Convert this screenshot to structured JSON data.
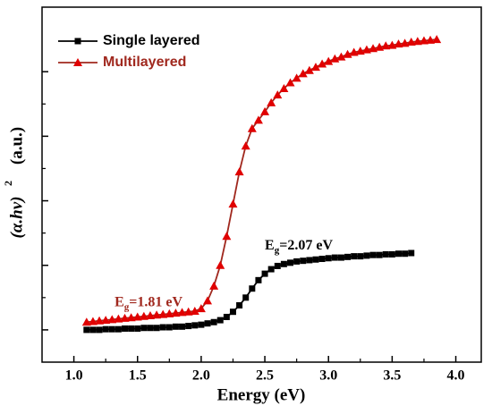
{
  "chart_data": {
    "type": "line",
    "xlabel": "Energy (eV)",
    "ylabel": "(α.hν)",
    "ylabel_sup": "2",
    "ylabel_unit": "(a.u.)",
    "xlim": [
      0.75,
      4.2
    ],
    "ylim": [
      -0.5,
      5
    ],
    "xticks": [
      {
        "value": 1,
        "label": "1.0"
      },
      {
        "value": 1.5,
        "label": "1.5"
      },
      {
        "value": 2,
        "label": "2.0"
      },
      {
        "value": 2.5,
        "label": "2.5"
      },
      {
        "value": 3,
        "label": "3.0"
      },
      {
        "value": 3.5,
        "label": "3.5"
      },
      {
        "value": 4,
        "label": "4.0"
      }
    ],
    "yticks": [
      0,
      1,
      2,
      3,
      4
    ],
    "legend": "upper left",
    "series": [
      {
        "name": "Single layered",
        "color": "#000000",
        "marker_color": "#000000",
        "marker": "square",
        "x": [
          1.1,
          1.15,
          1.2,
          1.25,
          1.3,
          1.35,
          1.4,
          1.45,
          1.5,
          1.55,
          1.6,
          1.65,
          1.7,
          1.75,
          1.8,
          1.85,
          1.9,
          1.95,
          2.0,
          2.05,
          2.1,
          2.15,
          2.2,
          2.25,
          2.3,
          2.35,
          2.4,
          2.45,
          2.5,
          2.55,
          2.6,
          2.65,
          2.7,
          2.75,
          2.8,
          2.85,
          2.9,
          2.95,
          3.0,
          3.05,
          3.1,
          3.15,
          3.2,
          3.25,
          3.3,
          3.35,
          3.4,
          3.45,
          3.5,
          3.55,
          3.6,
          3.65
        ],
        "values": [
          0.0,
          0.0,
          0.0,
          0.01,
          0.01,
          0.01,
          0.02,
          0.02,
          0.02,
          0.03,
          0.03,
          0.03,
          0.04,
          0.04,
          0.05,
          0.05,
          0.06,
          0.07,
          0.08,
          0.1,
          0.12,
          0.15,
          0.2,
          0.28,
          0.38,
          0.5,
          0.64,
          0.77,
          0.87,
          0.94,
          0.99,
          1.02,
          1.04,
          1.06,
          1.07,
          1.08,
          1.09,
          1.1,
          1.11,
          1.12,
          1.12,
          1.13,
          1.14,
          1.14,
          1.15,
          1.16,
          1.16,
          1.17,
          1.17,
          1.18,
          1.18,
          1.19
        ]
      },
      {
        "name": "Multilayered",
        "color": "#a0281e",
        "marker_color": "#e00000",
        "marker": "triangle",
        "x": [
          1.1,
          1.15,
          1.2,
          1.25,
          1.3,
          1.35,
          1.4,
          1.45,
          1.5,
          1.55,
          1.6,
          1.65,
          1.7,
          1.75,
          1.8,
          1.85,
          1.9,
          1.95,
          2.0,
          2.05,
          2.1,
          2.15,
          2.2,
          2.25,
          2.3,
          2.35,
          2.4,
          2.45,
          2.5,
          2.55,
          2.6,
          2.65,
          2.7,
          2.75,
          2.8,
          2.85,
          2.9,
          2.95,
          3.0,
          3.05,
          3.1,
          3.15,
          3.2,
          3.25,
          3.3,
          3.35,
          3.4,
          3.45,
          3.5,
          3.55,
          3.6,
          3.65,
          3.7,
          3.75,
          3.8,
          3.85
        ],
        "values": [
          0.12,
          0.13,
          0.14,
          0.15,
          0.16,
          0.17,
          0.18,
          0.19,
          0.2,
          0.21,
          0.22,
          0.23,
          0.24,
          0.25,
          0.26,
          0.27,
          0.28,
          0.29,
          0.33,
          0.45,
          0.68,
          1.0,
          1.45,
          1.95,
          2.45,
          2.85,
          3.12,
          3.25,
          3.38,
          3.52,
          3.64,
          3.74,
          3.83,
          3.9,
          3.97,
          4.02,
          4.07,
          4.12,
          4.16,
          4.2,
          4.23,
          4.27,
          4.3,
          4.32,
          4.34,
          4.36,
          4.38,
          4.4,
          4.41,
          4.43,
          4.44,
          4.46,
          4.47,
          4.48,
          4.49,
          4.5
        ]
      }
    ],
    "annotations": [
      {
        "text": "E",
        "sub": "g",
        "rest": "=2.07 eV",
        "x": 2.5,
        "y": 1.3,
        "color": "#000000"
      },
      {
        "text": "E",
        "sub": "g",
        "rest": "=1.81 eV",
        "x": 1.32,
        "y": 0.42,
        "color": "#a0281e"
      }
    ]
  }
}
